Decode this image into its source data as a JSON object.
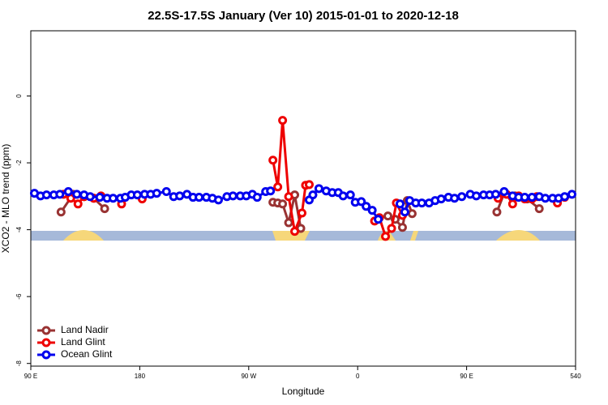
{
  "chart_data": {
    "type": "line",
    "title": "22.5S-17.5S January (Ver 10)   2015-01-01 to 2020-12-18",
    "x_label": "Longitude",
    "y_label": "XCO2 - MLO trend (ppm)",
    "xlim": [
      90,
      540
    ],
    "ylim": [
      -8.08,
      1.95
    ],
    "xticks": [
      {
        "value": 90,
        "label": "90 E"
      },
      180,
      {
        "value": 270,
        "label": "90 W"
      },
      {
        "value": 360,
        "label": "0"
      },
      {
        "value": 450,
        "label": "90 E"
      },
      540
    ],
    "yticks": [
      0,
      -2,
      -4,
      -6,
      -8
    ],
    "legend": "bottomleft",
    "series": [
      {
        "name": "Land Nadir",
        "color": "#993333",
        "x": [
          115,
          125,
          134,
          142,
          151,
          220,
          290,
          294,
          298,
          303,
          308,
          313,
          350,
          385,
          391,
          397,
          401,
          405,
          440,
          475,
          481,
          490,
          500,
          510
        ],
        "values": [
          -3.47,
          -2.94,
          -3.01,
          -3.06,
          -3.37,
          null,
          -3.18,
          -3.2,
          -3.23,
          -3.79,
          -2.96,
          -3.96,
          null,
          -3.59,
          -3.69,
          -3.93,
          -3.13,
          -3.52,
          null,
          -3.47,
          -2.91,
          -2.99,
          -3.08,
          -3.37
        ]
      },
      {
        "name": "Land Glint",
        "color": "#ee0000",
        "x": [
          117,
          123,
          129,
          134,
          142,
          148,
          157,
          165,
          173,
          182,
          250,
          290,
          294,
          298,
          303,
          308,
          314,
          317,
          320,
          350,
          374,
          378,
          383,
          388,
          392,
          397,
          440,
          476,
          483,
          488,
          493,
          498,
          504,
          508,
          516,
          525,
          531
        ],
        "values": [
          -2.94,
          -3.06,
          -3.23,
          -3.01,
          -3.06,
          -2.99,
          null,
          -3.23,
          null,
          -3.08,
          null,
          -1.92,
          -2.72,
          -0.73,
          -3.01,
          -4.05,
          -3.5,
          -2.67,
          -2.65,
          null,
          -3.74,
          -3.64,
          -4.2,
          -3.96,
          -3.2,
          -3.57,
          null,
          -3.06,
          -2.94,
          -3.23,
          -2.99,
          -3.08,
          -3.08,
          -3.01,
          null,
          -3.2,
          -3.03
        ]
      },
      {
        "name": "Ocean Glint",
        "color": "#0000ee",
        "x": [
          93,
          98,
          103,
          109,
          114,
          121,
          128,
          134,
          139,
          147,
          153,
          158,
          164,
          168,
          173,
          178,
          184,
          189,
          194,
          202,
          208,
          213,
          219,
          224,
          229,
          235,
          240,
          245,
          252,
          257,
          263,
          268,
          273,
          277,
          284,
          288,
          300,
          320,
          323,
          328,
          334,
          339,
          344,
          348,
          354,
          358,
          363,
          367,
          372,
          377,
          385,
          395,
          399,
          403,
          408,
          413,
          419,
          424,
          429,
          435,
          440,
          446,
          453,
          458,
          464,
          469,
          474,
          481,
          488,
          493,
          498,
          504,
          510,
          515,
          521,
          526,
          531,
          537
        ],
        "values": [
          -2.91,
          -2.99,
          -2.96,
          -2.96,
          -2.94,
          -2.86,
          -2.94,
          -2.96,
          -3.01,
          -3.03,
          -3.06,
          -3.06,
          -3.06,
          -3.03,
          -2.96,
          -2.96,
          -2.94,
          -2.94,
          -2.91,
          -2.86,
          -3.01,
          -2.99,
          -2.94,
          -3.03,
          -3.03,
          -3.03,
          -3.06,
          -3.11,
          -3.01,
          -2.99,
          -2.99,
          -2.99,
          -2.94,
          -3.03,
          -2.86,
          -2.84,
          null,
          -3.11,
          -2.96,
          -2.77,
          -2.84,
          -2.89,
          -2.89,
          -2.99,
          -2.96,
          -3.18,
          -3.16,
          -3.3,
          -3.42,
          -3.69,
          null,
          -3.23,
          -3.47,
          -3.13,
          -3.2,
          -3.2,
          -3.2,
          -3.13,
          -3.08,
          -3.03,
          -3.06,
          -3.01,
          -2.94,
          -2.99,
          -2.96,
          -2.96,
          -2.94,
          -2.86,
          -2.99,
          -3.03,
          -3.03,
          -3.03,
          -3.01,
          -3.06,
          -3.06,
          -3.06,
          -3.01,
          -2.94
        ]
      }
    ]
  }
}
